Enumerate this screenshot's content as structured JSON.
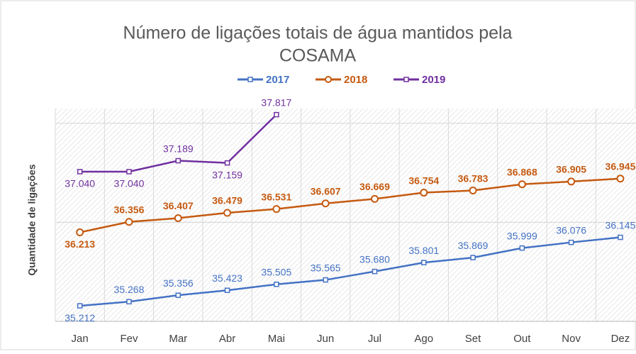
{
  "chart_data": {
    "type": "line",
    "title": "Número de ligações totais de água mantidos pela COSAMA",
    "ylabel": "Quantidade de ligações",
    "categories": [
      "Jan",
      "Fev",
      "Mar",
      "Abr",
      "Mai",
      "Jun",
      "Jul",
      "Ago",
      "Set",
      "Out",
      "Nov",
      "Dez"
    ],
    "series": [
      {
        "name": "2017",
        "color": "#4472c4",
        "marker": "square",
        "values": [
          35212,
          35268,
          35356,
          35423,
          35505,
          35565,
          35680,
          35801,
          35869,
          35999,
          36076,
          36145
        ],
        "value_labels": [
          "35.212",
          "35.268",
          "35.356",
          "35.423",
          "35.505",
          "35.565",
          "35.680",
          "35.801",
          "35.869",
          "35.999",
          "36.076",
          "36.145"
        ]
      },
      {
        "name": "2018",
        "color": "#c55a11",
        "marker": "circle",
        "values": [
          36213,
          36356,
          36407,
          36479,
          36531,
          36607,
          36669,
          36754,
          36783,
          36868,
          36905,
          36945
        ],
        "value_labels": [
          "36.213",
          "36.356",
          "36.407",
          "36.479",
          "36.531",
          "36.607",
          "36.669",
          "36.754",
          "36.783",
          "36.868",
          "36.905",
          "36.945"
        ]
      },
      {
        "name": "2019",
        "color": "#7030a0",
        "marker": "square",
        "values": [
          37040,
          37040,
          37189,
          37159,
          37817,
          null,
          null,
          null,
          null,
          null,
          null,
          null
        ],
        "value_labels": [
          "37.040",
          "37.040",
          "37.189",
          "37.159",
          "37.817",
          null,
          null,
          null,
          null,
          null,
          null,
          null
        ]
      }
    ],
    "ylim": [
      35000,
      37900
    ],
    "yticks": [
      35000,
      36350,
      37700
    ],
    "grid": true,
    "legend": "top"
  }
}
